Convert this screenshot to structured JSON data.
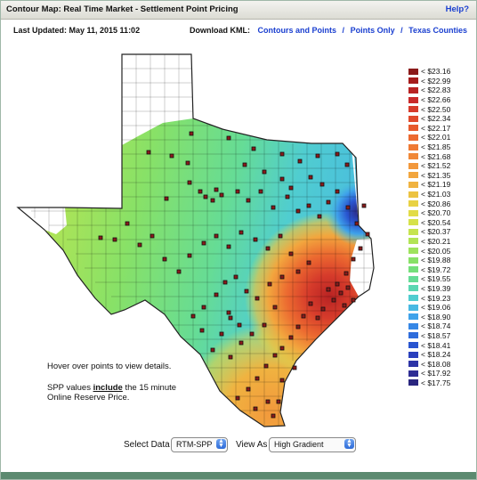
{
  "header": {
    "title": "Contour Map:  Real Time Market - Settlement Point Pricing",
    "help_label": "Help?"
  },
  "status": {
    "last_updated": "Last Updated: May 11, 2015 11:02"
  },
  "kml": {
    "label": "Download KML:",
    "links": [
      "Contours and Points",
      "Points Only",
      "Texas Counties"
    ],
    "separator": "/"
  },
  "legend": {
    "items": [
      {
        "label": "< $23.16",
        "color": "#8b1a1a"
      },
      {
        "label": "< $22.99",
        "color": "#a51c1c"
      },
      {
        "label": "< $22.83",
        "color": "#b82323"
      },
      {
        "label": "< $22.66",
        "color": "#c92a2a"
      },
      {
        "label": "< $22.50",
        "color": "#d63b2b"
      },
      {
        "label": "< $22.34",
        "color": "#e04a2c"
      },
      {
        "label": "< $22.17",
        "color": "#e75a2d"
      },
      {
        "label": "< $22.01",
        "color": "#ec6a30"
      },
      {
        "label": "< $21.85",
        "color": "#ef7a34"
      },
      {
        "label": "< $21.68",
        "color": "#f08838"
      },
      {
        "label": "< $21.52",
        "color": "#f2983c"
      },
      {
        "label": "< $21.35",
        "color": "#f2a63e"
      },
      {
        "label": "< $21.19",
        "color": "#f0b340"
      },
      {
        "label": "< $21.03",
        "color": "#ecc342"
      },
      {
        "label": "< $20.86",
        "color": "#e8d244"
      },
      {
        "label": "< $20.70",
        "color": "#e2dc47"
      },
      {
        "label": "< $20.54",
        "color": "#d6e24a"
      },
      {
        "label": "< $20.37",
        "color": "#c6e44e"
      },
      {
        "label": "< $20.21",
        "color": "#b2e455"
      },
      {
        "label": "< $20.05",
        "color": "#9ee35c"
      },
      {
        "label": "< $19.88",
        "color": "#88e167"
      },
      {
        "label": "< $19.72",
        "color": "#74df7a"
      },
      {
        "label": "< $19.55",
        "color": "#66dc95"
      },
      {
        "label": "< $19.39",
        "color": "#5ad7b2"
      },
      {
        "label": "< $19.23",
        "color": "#50cdd0"
      },
      {
        "label": "< $19.06",
        "color": "#48b9e3"
      },
      {
        "label": "< $18.90",
        "color": "#3fa2ea"
      },
      {
        "label": "< $18.74",
        "color": "#3687e6"
      },
      {
        "label": "< $18.57",
        "color": "#2f6ddc"
      },
      {
        "label": "< $18.41",
        "color": "#2955d0"
      },
      {
        "label": "< $18.24",
        "color": "#2a40bd"
      },
      {
        "label": "< $18.08",
        "color": "#2d34a6"
      },
      {
        "label": "< $17.92",
        "color": "#2e2d94"
      },
      {
        "label": "< $17.75",
        "color": "#2a267f"
      }
    ]
  },
  "notes": {
    "hover": "Hover over points to view details.",
    "spp_pre": "SPP values ",
    "spp_bold": "include",
    "spp_post": " the 15 minute Online Reserve Price."
  },
  "controls": {
    "select_data_label": "Select Data",
    "select_data_value": "RTM-SPP",
    "view_as_label": "View As",
    "view_as_value": "High Gradient"
  }
}
